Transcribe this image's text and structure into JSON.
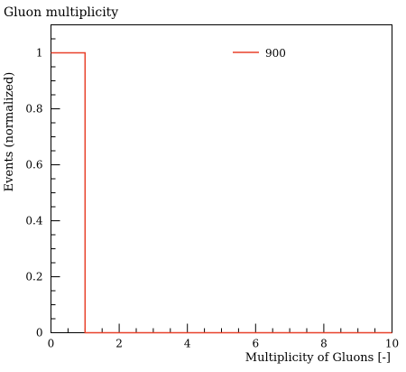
{
  "chart_data": {
    "type": "step",
    "title": "Gluon multiplicity",
    "xlabel": "Multiplicity of Gluons [-]",
    "ylabel": "Events (normalized)",
    "xlim": [
      0,
      10
    ],
    "ylim": [
      0,
      1.1
    ],
    "x_major_ticks": [
      0,
      2,
      4,
      6,
      8,
      10
    ],
    "x_minor_step": 0.5,
    "y_major_ticks": [
      0,
      0.2,
      0.4,
      0.6,
      0.8,
      1
    ],
    "y_major_tick_labels": [
      "0",
      "0.2",
      "0.4",
      "0.6",
      "0.8",
      "1"
    ],
    "y_minor_step": 0.05,
    "grid": false,
    "legend_position": "top-right",
    "series": [
      {
        "name": "900",
        "color": "#e8412a",
        "bin_edges": [
          0,
          1,
          2,
          3,
          4,
          5,
          6,
          7,
          8,
          9,
          10
        ],
        "values": [
          1,
          0,
          0,
          0,
          0,
          0,
          0,
          0,
          0,
          0
        ]
      }
    ]
  }
}
